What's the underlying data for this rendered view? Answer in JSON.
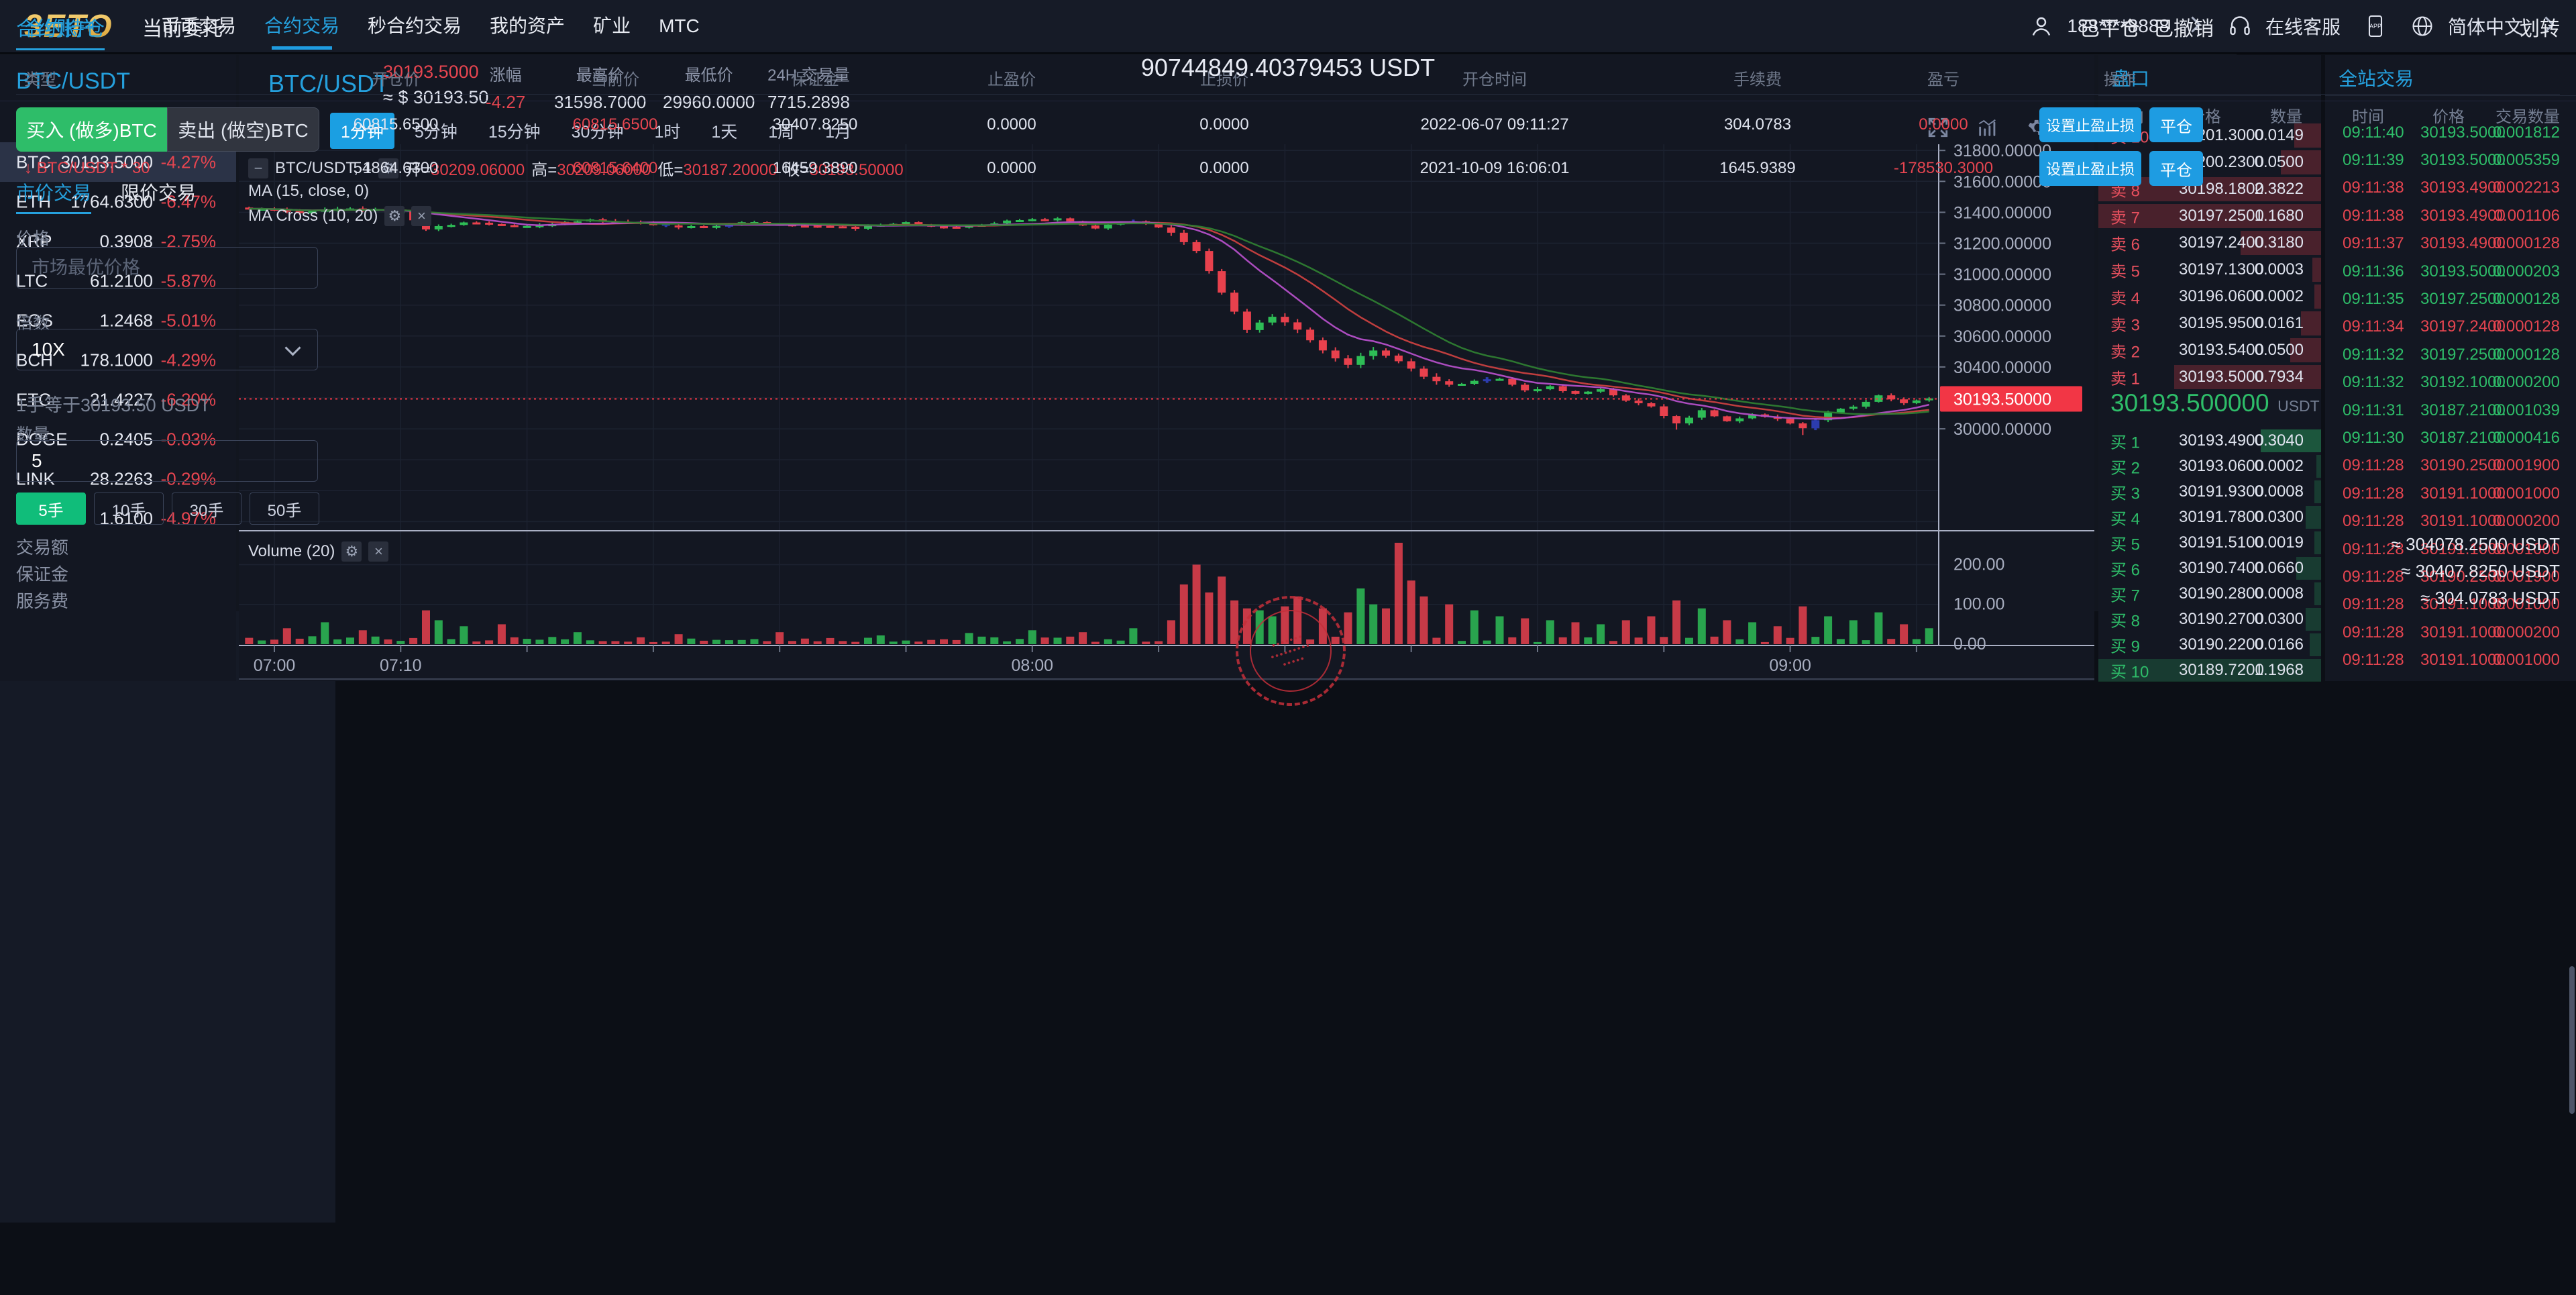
{
  "nav": {
    "logo": "3ETO",
    "items": [
      "币币交易",
      "合约交易",
      "秒合约交易",
      "我的资产",
      "矿业",
      "MTC"
    ],
    "active_index": 1,
    "phone": "188****8888",
    "support": "在线客服",
    "app_label": "APP",
    "language": "简体中文"
  },
  "sidebar": {
    "pair": "BTC/USDT",
    "columns": [
      "币种",
      "最新价",
      "涨幅"
    ],
    "rows": [
      {
        "coin": "BTC",
        "price": "30193.5000",
        "change": "-4.27%",
        "selected": true
      },
      {
        "coin": "ETH",
        "price": "1764.6300",
        "change": "-6.47%",
        "selected": false
      },
      {
        "coin": "XRP",
        "price": "0.3908",
        "change": "-2.75%",
        "selected": false
      },
      {
        "coin": "LTC",
        "price": "61.2100",
        "change": "-5.87%",
        "selected": false
      },
      {
        "coin": "EOS",
        "price": "1.2468",
        "change": "-5.01%",
        "selected": false
      },
      {
        "coin": "BCH",
        "price": "178.1000",
        "change": "-4.29%",
        "selected": false
      },
      {
        "coin": "ETC",
        "price": "21.4227",
        "change": "-6.20%",
        "selected": false
      },
      {
        "coin": "DOGE",
        "price": "0.2405",
        "change": "-0.03%",
        "selected": false
      },
      {
        "coin": "LINK",
        "price": "28.2263",
        "change": "-0.29%",
        "selected": false
      },
      {
        "coin": "ETO",
        "price": "1.6100",
        "change": "-4.97%",
        "selected": false
      }
    ]
  },
  "chart_header": {
    "pair": "BTC/USDT",
    "price": "30193.5000",
    "approx": "≈ $ 30193.50",
    "stats": [
      {
        "label": "涨幅",
        "value": "-4.27",
        "red": true
      },
      {
        "label": "最高价",
        "value": "31598.7000",
        "red": false
      },
      {
        "label": "最低价",
        "value": "29960.0000",
        "red": false
      },
      {
        "label": "24H 交易量",
        "value": "7715.2898",
        "red": false
      }
    ],
    "timeframes": [
      "分时",
      "1分钟",
      "5分钟",
      "15分钟",
      "30分钟",
      "1时",
      "1天",
      "1周",
      "1月"
    ],
    "active_timeframe": 1
  },
  "chart_legend": {
    "symbol": "BTC/USDT, 1",
    "o_label": "开=",
    "o": "30209.06000",
    "h_label": "高=",
    "h": "30209.06000",
    "l_label": "低=",
    "l": "30187.20000",
    "c_label": "收=",
    "c": "30193.50000",
    "ma1": "MA (15, close, 0)",
    "ma2": "MA Cross (10, 20)",
    "volume": "Volume (20)"
  },
  "chart_data": {
    "type": "candlestick",
    "pair": "BTC/USDT",
    "interval": "1m",
    "current_price": 30193.5,
    "current_price_label": "30193.50000",
    "day_high": 31598.7,
    "day_low": 29960.0,
    "y_ticks": [
      "31800.00000",
      "31600.00000",
      "31400.00000",
      "31200.00000",
      "31000.00000",
      "30800.00000",
      "30600.00000",
      "30400.00000",
      "30000.00000"
    ],
    "grid_prices": [
      31800,
      31600,
      31400,
      31200,
      31000,
      30800,
      30600,
      30400,
      30200,
      30000,
      29800,
      29600,
      29400
    ],
    "volume_ticks": [
      {
        "label": "200.00",
        "v": 200
      },
      {
        "label": "100.00",
        "v": 100
      },
      {
        "label": "0.00",
        "v": 0
      }
    ],
    "x_labels": [
      {
        "t": "07:00",
        "i": 2
      },
      {
        "t": "07:10",
        "i": 12
      },
      {
        "t": "08:00",
        "i": 62
      },
      {
        "t": "09:00",
        "i": 122
      }
    ],
    "close_anchors": [
      [
        0,
        31430
      ],
      [
        4,
        31400
      ],
      [
        8,
        31430
      ],
      [
        12,
        31400
      ],
      [
        14,
        31290
      ],
      [
        17,
        31340
      ],
      [
        22,
        31310
      ],
      [
        27,
        31355
      ],
      [
        32,
        31320
      ],
      [
        36,
        31300
      ],
      [
        40,
        31340
      ],
      [
        44,
        31310
      ],
      [
        48,
        31300
      ],
      [
        52,
        31330
      ],
      [
        56,
        31300
      ],
      [
        60,
        31340
      ],
      [
        64,
        31360
      ],
      [
        67,
        31300
      ],
      [
        70,
        31345
      ],
      [
        73,
        31270
      ],
      [
        75,
        31150
      ],
      [
        77,
        30880
      ],
      [
        79,
        30640
      ],
      [
        81,
        30730
      ],
      [
        83,
        30640
      ],
      [
        85,
        30500
      ],
      [
        87,
        30420
      ],
      [
        89,
        30510
      ],
      [
        91,
        30440
      ],
      [
        93,
        30340
      ],
      [
        95,
        30280
      ],
      [
        97,
        30310
      ],
      [
        99,
        30330
      ],
      [
        101,
        30250
      ],
      [
        103,
        30270
      ],
      [
        105,
        30220
      ],
      [
        107,
        30250
      ],
      [
        109,
        30180
      ],
      [
        111,
        30140
      ],
      [
        113,
        30030
      ],
      [
        115,
        30120
      ],
      [
        117,
        30050
      ],
      [
        119,
        30090
      ],
      [
        121,
        30070
      ],
      [
        123,
        30000
      ],
      [
        125,
        30100
      ],
      [
        127,
        30150
      ],
      [
        129,
        30210
      ],
      [
        131,
        30170
      ],
      [
        133,
        30193.5
      ]
    ],
    "low_overrides": {
      "123": 29960,
      "113": 29995
    },
    "navy_candles": [
      33,
      38,
      70,
      98,
      124
    ],
    "volume_spikes": [
      [
        3,
        40
      ],
      [
        6,
        55
      ],
      [
        9,
        35
      ],
      [
        14,
        85
      ],
      [
        15,
        60
      ],
      [
        17,
        45
      ],
      [
        20,
        50
      ],
      [
        26,
        30
      ],
      [
        34,
        25
      ],
      [
        42,
        30
      ],
      [
        50,
        22
      ],
      [
        57,
        28
      ],
      [
        62,
        35
      ],
      [
        66,
        30
      ],
      [
        70,
        40
      ],
      [
        73,
        60
      ],
      [
        74,
        150
      ],
      [
        75,
        200
      ],
      [
        76,
        130
      ],
      [
        77,
        170
      ],
      [
        78,
        110
      ],
      [
        79,
        90
      ],
      [
        80,
        85
      ],
      [
        81,
        70
      ],
      [
        82,
        95
      ],
      [
        83,
        120
      ],
      [
        85,
        90
      ],
      [
        87,
        80
      ],
      [
        88,
        140
      ],
      [
        89,
        100
      ],
      [
        90,
        90
      ],
      [
        91,
        255
      ],
      [
        92,
        160
      ],
      [
        93,
        120
      ],
      [
        95,
        100
      ],
      [
        97,
        85
      ],
      [
        99,
        70
      ],
      [
        101,
        65
      ],
      [
        103,
        60
      ],
      [
        105,
        55
      ],
      [
        107,
        50
      ],
      [
        109,
        60
      ],
      [
        111,
        70
      ],
      [
        113,
        110
      ],
      [
        115,
        90
      ],
      [
        117,
        60
      ],
      [
        119,
        55
      ],
      [
        121,
        45
      ],
      [
        123,
        95
      ],
      [
        125,
        70
      ],
      [
        127,
        60
      ],
      [
        129,
        80
      ],
      [
        131,
        50
      ],
      [
        133,
        40
      ]
    ],
    "ma_colors": {
      "ma15": "#c94040",
      "ma10": "#b44fc8",
      "ma20": "#2e7d32"
    },
    "candle_colors": {
      "up": "#2ebd56",
      "down": "#e8414d",
      "navy": "#2c3cae"
    }
  },
  "orderbook": {
    "title": "盘口",
    "columns": [
      "方向",
      "价格",
      "数量"
    ],
    "asks": [
      {
        "dir": "卖 10",
        "price": "30201.3000",
        "qty": "0.0149",
        "depth": 12
      },
      {
        "dir": "卖 9",
        "price": "30200.2300",
        "qty": "0.0500",
        "depth": 18
      },
      {
        "dir": "卖 8",
        "price": "30198.1800",
        "qty": "2.3822",
        "depth": 100
      },
      {
        "dir": "卖 7",
        "price": "30197.2500",
        "qty": "1.1680",
        "depth": 100
      },
      {
        "dir": "卖 6",
        "price": "30197.2400",
        "qty": "0.3180",
        "depth": 36
      },
      {
        "dir": "卖 5",
        "price": "30197.1300",
        "qty": "0.0003",
        "depth": 4
      },
      {
        "dir": "卖 4",
        "price": "30196.0600",
        "qty": "0.0002",
        "depth": 3
      },
      {
        "dir": "卖 3",
        "price": "30195.9500",
        "qty": "0.0161",
        "depth": 9
      },
      {
        "dir": "卖 2",
        "price": "30193.5400",
        "qty": "0.0500",
        "depth": 14
      },
      {
        "dir": "卖 1",
        "price": "30193.5000",
        "qty": "0.7934",
        "depth": 66
      }
    ],
    "current_price": "30193.500000",
    "current_unit": "USDT",
    "bids": [
      {
        "dir": "买 1",
        "price": "30193.4900",
        "qty": "0.3040",
        "depth": 27
      },
      {
        "dir": "买 2",
        "price": "30193.0600",
        "qty": "0.0002",
        "depth": 2
      },
      {
        "dir": "买 3",
        "price": "30191.9300",
        "qty": "0.0008",
        "depth": 3
      },
      {
        "dir": "买 4",
        "price": "30191.7800",
        "qty": "0.0300",
        "depth": 7
      },
      {
        "dir": "买 5",
        "price": "30191.5100",
        "qty": "0.0019",
        "depth": 3
      },
      {
        "dir": "买 6",
        "price": "30190.7400",
        "qty": "0.0660",
        "depth": 11
      },
      {
        "dir": "买 7",
        "price": "30190.2800",
        "qty": "0.0008",
        "depth": 3
      },
      {
        "dir": "买 8",
        "price": "30190.2700",
        "qty": "0.0300",
        "depth": 7
      },
      {
        "dir": "买 9",
        "price": "30190.2200",
        "qty": "0.0166",
        "depth": 5
      },
      {
        "dir": "买 10",
        "price": "30189.7200",
        "qty": "1.1968",
        "depth": 100
      }
    ]
  },
  "trades": {
    "title": "全站交易",
    "columns": [
      "时间",
      "价格",
      "交易数量"
    ],
    "rows": [
      {
        "t": "09:11:40",
        "p": "30193.5000",
        "q": "0.001812",
        "side": "g"
      },
      {
        "t": "09:11:39",
        "p": "30193.5000",
        "q": "0.005359",
        "side": "g"
      },
      {
        "t": "09:11:38",
        "p": "30193.4900",
        "q": "0.002213",
        "side": "r"
      },
      {
        "t": "09:11:38",
        "p": "30193.4900",
        "q": "0.001106",
        "side": "r"
      },
      {
        "t": "09:11:37",
        "p": "30193.4900",
        "q": "0.000128",
        "side": "r"
      },
      {
        "t": "09:11:36",
        "p": "30193.5000",
        "q": "0.000203",
        "side": "g"
      },
      {
        "t": "09:11:35",
        "p": "30197.2500",
        "q": "0.000128",
        "side": "g"
      },
      {
        "t": "09:11:34",
        "p": "30197.2400",
        "q": "0.000128",
        "side": "r"
      },
      {
        "t": "09:11:32",
        "p": "30197.2500",
        "q": "0.000128",
        "side": "g"
      },
      {
        "t": "09:11:32",
        "p": "30192.1000",
        "q": "0.000200",
        "side": "g"
      },
      {
        "t": "09:11:31",
        "p": "30187.2100",
        "q": "0.001039",
        "side": "g"
      },
      {
        "t": "09:11:30",
        "p": "30187.2100",
        "q": "0.000416",
        "side": "g"
      },
      {
        "t": "09:11:28",
        "p": "30190.2500",
        "q": "0.001900",
        "side": "r"
      },
      {
        "t": "09:11:28",
        "p": "30191.1000",
        "q": "0.001000",
        "side": "r"
      },
      {
        "t": "09:11:28",
        "p": "30191.1000",
        "q": "0.000200",
        "side": "r"
      },
      {
        "t": "09:11:28",
        "p": "30191.1000",
        "q": "0.001000",
        "side": "r"
      },
      {
        "t": "09:11:28",
        "p": "30190.2500",
        "q": "0.001900",
        "side": "r"
      },
      {
        "t": "09:11:28",
        "p": "30191.1000",
        "q": "0.001000",
        "side": "r"
      },
      {
        "t": "09:11:28",
        "p": "30191.1000",
        "q": "0.000200",
        "side": "r"
      },
      {
        "t": "09:11:28",
        "p": "30191.1000",
        "q": "0.001000",
        "side": "r"
      }
    ]
  },
  "positions": {
    "tabs": [
      "合约持仓",
      "当前委托"
    ],
    "links": [
      "已平仓",
      "已撤销"
    ],
    "headers": [
      "类型",
      "开仓价",
      "当前价",
      "保证金",
      "止盈价",
      "止损价",
      "开仓时间",
      "手续费",
      "盈亏",
      "操作"
    ],
    "btn_tpsl": "设置止盈止损",
    "btn_close": "平仓",
    "rows": [
      {
        "arrow": "↑",
        "type": "BTC/USDT * 5",
        "long": true,
        "open": "60815.6500",
        "current": "60815.6500",
        "margin": "30407.8250",
        "tp": "0.0000",
        "sl": "0.0000",
        "time": "2022-06-07 09:11:27",
        "fee": "304.0783",
        "pnl": "0.0000"
      },
      {
        "arrow": "↓",
        "type": "BTC/USDT * 30",
        "long": false,
        "open": "54864.6300",
        "current": "60815.6400",
        "margin": "16459.3890",
        "tp": "0.0000",
        "sl": "0.0000",
        "time": "2021-10-09 16:06:01",
        "fee": "1645.9389",
        "pnl": "-178530.3000"
      }
    ]
  },
  "account": {
    "title": "合约账户",
    "transfer": "划转",
    "balance": "90744849.40379453 USDT",
    "buy_btn": "买入 (做多)BTC",
    "sell_btn": "卖出 (做空)BTC",
    "tabs": [
      "市价交易",
      "限价交易"
    ],
    "price_label": "价格",
    "price_placeholder": "市场最优价格",
    "leverage_label": "倍数",
    "leverage_value": "10X",
    "lot_hint": "1手等于30193.50 USDT",
    "qty_label": "数量",
    "qty_value": "5",
    "lots": [
      "5手",
      "10手",
      "30手",
      "50手"
    ],
    "active_lot": 0,
    "summary": [
      {
        "label": "交易额",
        "value": "≈ 304078.2500 USDT"
      },
      {
        "label": "保证金",
        "value": "≈ 30407.8250 USDT"
      },
      {
        "label": "服务费",
        "value": "≈ 304.0783 USDT"
      }
    ]
  }
}
